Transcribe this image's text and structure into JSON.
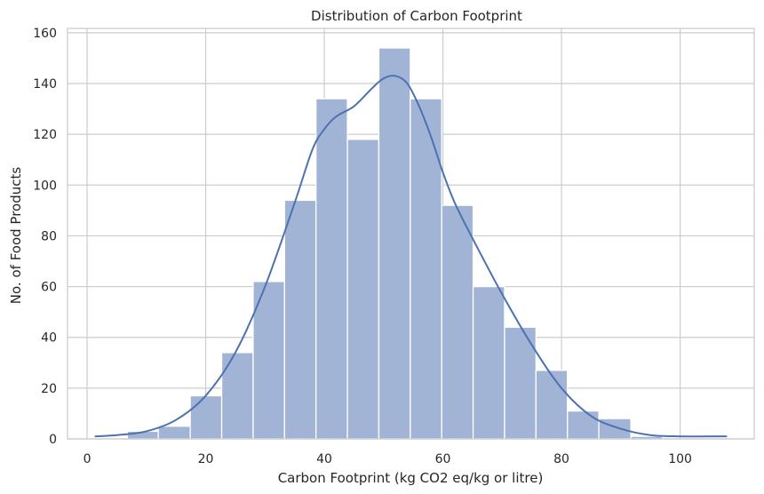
{
  "chart_data": {
    "type": "bar",
    "title": "Distribution of Carbon Footprint",
    "xlabel": "Carbon Footprint (kg CO2 eq/kg or litre)",
    "ylabel": "No. of Food Products",
    "xlim": [
      -3.3,
      112.5
    ],
    "ylim": [
      0,
      161.7
    ],
    "xticks": [
      0,
      20,
      40,
      60,
      80,
      100
    ],
    "yticks": [
      0,
      20,
      40,
      60,
      80,
      100,
      120,
      140,
      160
    ],
    "grid": true,
    "bins": [
      {
        "start": 6.8,
        "end": 12.0,
        "count": 3
      },
      {
        "start": 12.0,
        "end": 17.4,
        "count": 5
      },
      {
        "start": 17.4,
        "end": 22.7,
        "count": 17
      },
      {
        "start": 22.7,
        "end": 28.0,
        "count": 34
      },
      {
        "start": 28.0,
        "end": 33.3,
        "count": 62
      },
      {
        "start": 33.3,
        "end": 38.6,
        "count": 94
      },
      {
        "start": 38.6,
        "end": 43.9,
        "count": 134
      },
      {
        "start": 43.9,
        "end": 49.2,
        "count": 118
      },
      {
        "start": 49.2,
        "end": 54.5,
        "count": 154
      },
      {
        "start": 54.5,
        "end": 59.8,
        "count": 134
      },
      {
        "start": 59.8,
        "end": 65.1,
        "count": 92
      },
      {
        "start": 65.1,
        "end": 70.4,
        "count": 60
      },
      {
        "start": 70.4,
        "end": 75.7,
        "count": 44
      },
      {
        "start": 75.7,
        "end": 81.0,
        "count": 27
      },
      {
        "start": 81.0,
        "end": 86.3,
        "count": 11
      },
      {
        "start": 86.3,
        "end": 91.7,
        "count": 8
      },
      {
        "start": 91.7,
        "end": 97.0,
        "count": 1
      }
    ],
    "kde": {
      "x": [
        1.3,
        5,
        10,
        15,
        20,
        25,
        30,
        35,
        38,
        40,
        42,
        45,
        48,
        50,
        52,
        54,
        56,
        58,
        60,
        62,
        65,
        70,
        75,
        80,
        85,
        90,
        95,
        100,
        107.9
      ],
      "y": [
        1,
        1.5,
        3,
        7.5,
        17,
        34,
        60,
        93,
        114,
        122,
        127,
        131,
        138,
        142,
        143,
        140,
        131,
        119,
        105,
        93,
        79,
        57,
        37,
        20,
        9,
        4,
        1.5,
        1,
        1
      ]
    },
    "colors": {
      "bar_fill": "#a2b4d6",
      "bar_edge": "#ffffff",
      "line": "#4c72b0",
      "grid": "#cccccc",
      "frame": "#cccccc",
      "text": "#262626"
    }
  }
}
